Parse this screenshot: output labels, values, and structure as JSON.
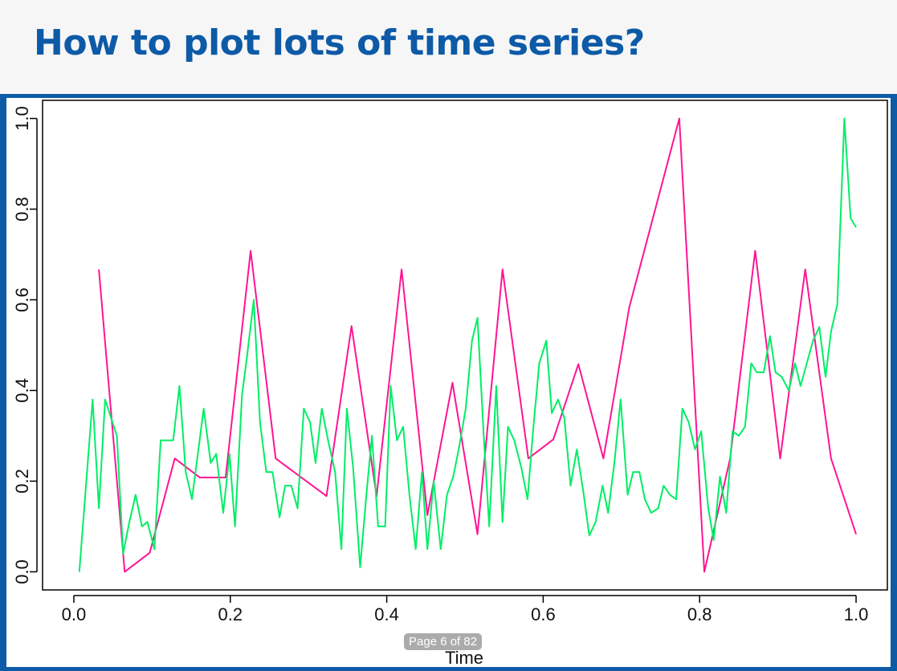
{
  "slide_title": "How to plot lots of time series?",
  "page_indicator": "Page 6 of 82",
  "chart_data": {
    "type": "line",
    "x_label": "Time",
    "xlim": [
      -0.04,
      1.04
    ],
    "ylim": [
      -0.04,
      1.04
    ],
    "xticks": [
      {
        "value": 0,
        "label": "0.0"
      },
      {
        "value": 0.2,
        "label": "0.2"
      },
      {
        "value": 0.4,
        "label": "0.4"
      },
      {
        "value": 0.6,
        "label": "0.6"
      },
      {
        "value": 0.8,
        "label": "0.8"
      },
      {
        "value": 1,
        "label": "1.0"
      }
    ],
    "yticks": [
      {
        "value": 0,
        "label": "0.0"
      },
      {
        "value": 0.2,
        "label": "0.2"
      },
      {
        "value": 0.4,
        "label": "0.4"
      },
      {
        "value": 0.6,
        "label": "0.6"
      },
      {
        "value": 0.8,
        "label": "0.8"
      },
      {
        "value": 1,
        "label": "1.0"
      }
    ],
    "series": [
      {
        "color": "#ff1493",
        "x": [
          0.032,
          0.065,
          0.097,
          0.129,
          0.161,
          0.194,
          0.226,
          0.258,
          0.323,
          0.355,
          0.387,
          0.419,
          0.452,
          0.484,
          0.516,
          0.548,
          0.581,
          0.613,
          0.645,
          0.677,
          0.71,
          0.774,
          0.806,
          0.839,
          0.871,
          0.903,
          0.935,
          0.968,
          1.0
        ],
        "values": [
          0.667,
          0,
          0.042,
          0.25,
          0.208,
          0.208,
          0.708,
          0.25,
          0.167,
          0.542,
          0.167,
          0.667,
          0.125,
          0.417,
          0.083,
          0.667,
          0.25,
          0.292,
          0.458,
          0.25,
          0.583,
          1.0,
          0,
          0.25,
          0.708,
          0.25,
          0.667,
          0.25,
          0.083
        ]
      },
      {
        "color": "#00ee66",
        "x": [
          0.007,
          0.024,
          0.032,
          0.04,
          0.055,
          0.063,
          0.071,
          0.079,
          0.087,
          0.094,
          0.103,
          0.111,
          0.127,
          0.135,
          0.143,
          0.151,
          0.166,
          0.175,
          0.182,
          0.191,
          0.199,
          0.206,
          0.215,
          0.221,
          0.23,
          0.238,
          0.246,
          0.254,
          0.263,
          0.27,
          0.278,
          0.286,
          0.294,
          0.302,
          0.309,
          0.317,
          0.325,
          0.334,
          0.342,
          0.349,
          0.357,
          0.366,
          0.374,
          0.381,
          0.389,
          0.398,
          0.405,
          0.413,
          0.421,
          0.429,
          0.437,
          0.445,
          0.452,
          0.46,
          0.469,
          0.477,
          0.485,
          0.492,
          0.501,
          0.509,
          0.516,
          0.524,
          0.531,
          0.54,
          0.548,
          0.555,
          0.563,
          0.572,
          0.58,
          0.587,
          0.595,
          0.604,
          0.611,
          0.619,
          0.627,
          0.635,
          0.643,
          0.651,
          0.659,
          0.667,
          0.676,
          0.683,
          0.691,
          0.699,
          0.708,
          0.715,
          0.723,
          0.73,
          0.738,
          0.747,
          0.754,
          0.762,
          0.77,
          0.778,
          0.786,
          0.794,
          0.802,
          0.811,
          0.818,
          0.826,
          0.834,
          0.842,
          0.85,
          0.858,
          0.866,
          0.873,
          0.882,
          0.89,
          0.897,
          0.905,
          0.914,
          0.922,
          0.929,
          0.937,
          0.945,
          0.953,
          0.961,
          0.968,
          0.976,
          0.985,
          0.993,
          1.0
        ],
        "values": [
          0,
          0.38,
          0.14,
          0.38,
          0.3,
          0.04,
          0.11,
          0.17,
          0.1,
          0.11,
          0.05,
          0.29,
          0.29,
          0.41,
          0.22,
          0.16,
          0.36,
          0.24,
          0.26,
          0.13,
          0.26,
          0.1,
          0.39,
          0.47,
          0.6,
          0.33,
          0.22,
          0.22,
          0.12,
          0.19,
          0.19,
          0.14,
          0.36,
          0.33,
          0.24,
          0.36,
          0.29,
          0.22,
          0.05,
          0.36,
          0.23,
          0.01,
          0.17,
          0.3,
          0.1,
          0.1,
          0.41,
          0.29,
          0.32,
          0.17,
          0.05,
          0.22,
          0.05,
          0.2,
          0.05,
          0.17,
          0.21,
          0.27,
          0.36,
          0.51,
          0.56,
          0.3,
          0.1,
          0.41,
          0.11,
          0.32,
          0.29,
          0.23,
          0.16,
          0.31,
          0.46,
          0.51,
          0.35,
          0.38,
          0.34,
          0.19,
          0.27,
          0.18,
          0.08,
          0.11,
          0.19,
          0.13,
          0.24,
          0.38,
          0.17,
          0.22,
          0.22,
          0.16,
          0.13,
          0.14,
          0.19,
          0.17,
          0.16,
          0.36,
          0.33,
          0.27,
          0.31,
          0.14,
          0.07,
          0.21,
          0.13,
          0.31,
          0.3,
          0.32,
          0.46,
          0.44,
          0.44,
          0.52,
          0.44,
          0.43,
          0.4,
          0.46,
          0.41,
          0.46,
          0.51,
          0.54,
          0.43,
          0.53,
          0.59,
          1.0,
          0.78,
          0.76
        ]
      }
    ]
  }
}
